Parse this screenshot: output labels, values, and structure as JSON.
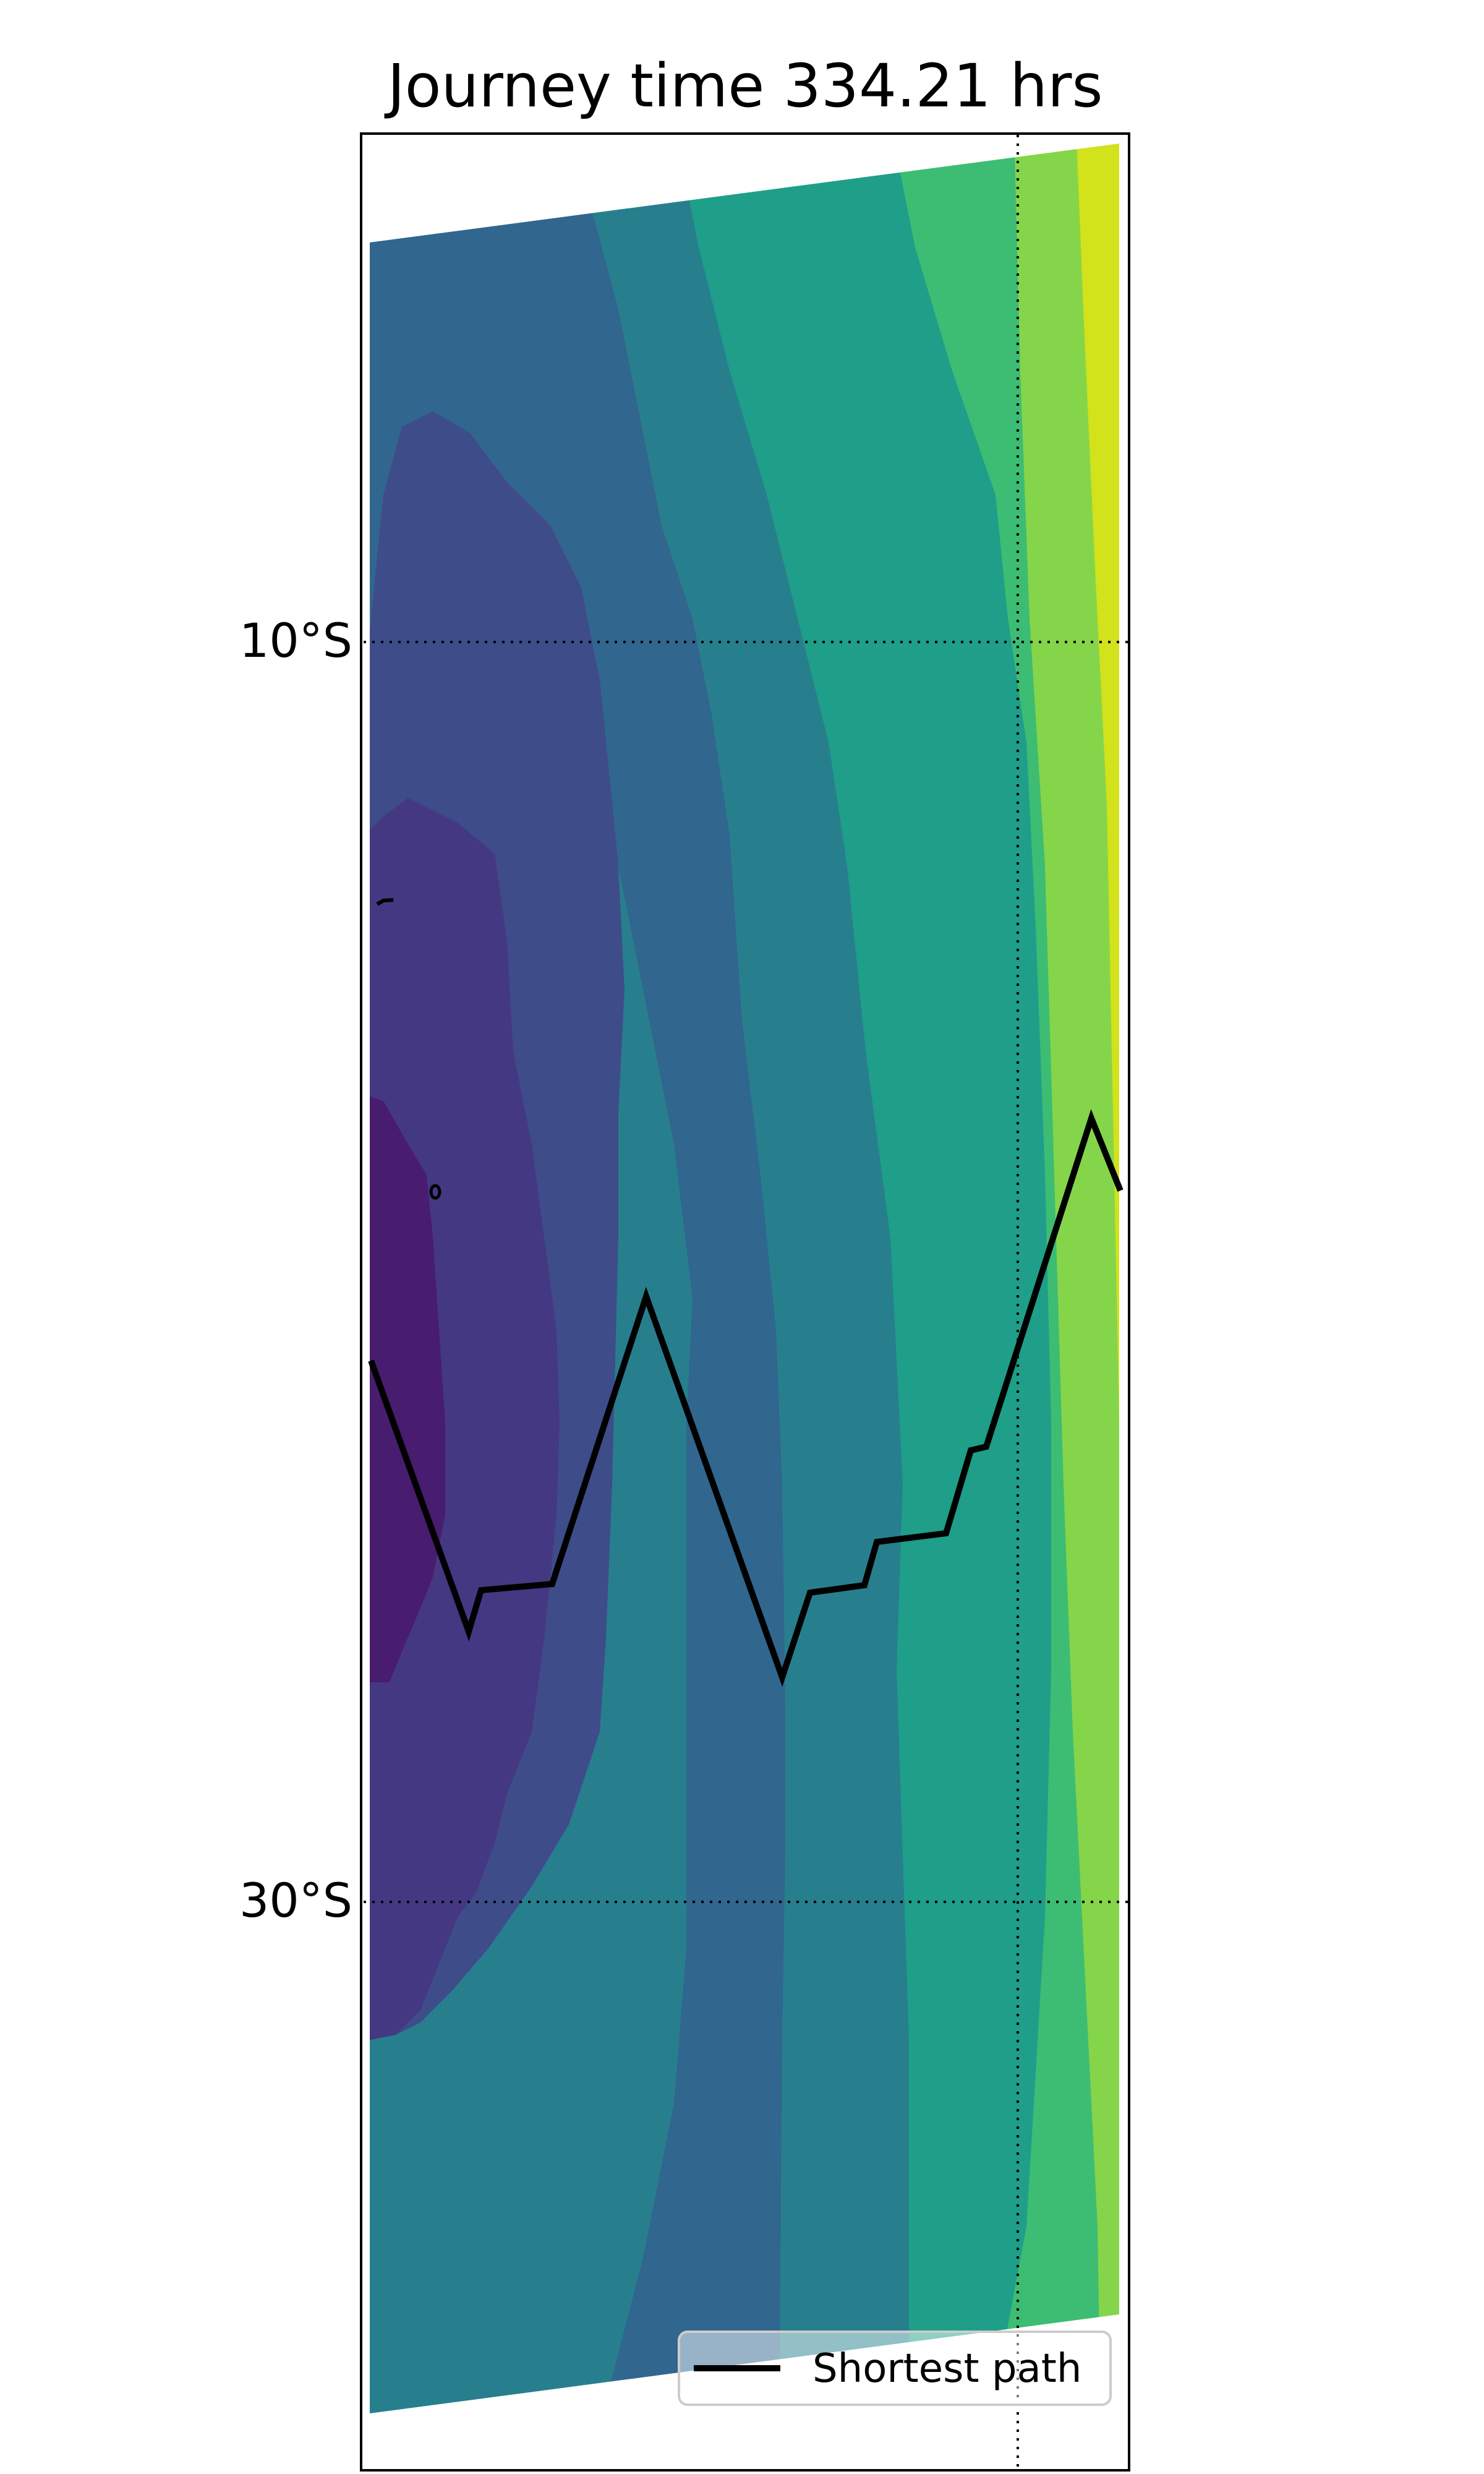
{
  "title": "Journey time 334.21 hrs",
  "lat_labels": [
    "10°S",
    "30°S"
  ],
  "legend": {
    "label": "Shortest path",
    "line_color": "#000000",
    "placement": "lower-right"
  },
  "graticule": {
    "style": "dotted",
    "color": "#000000",
    "latitudes_shown": [
      "10°S",
      "30°S"
    ],
    "meridians_shown": 1
  },
  "colormap": {
    "name": "viridis",
    "levels": [
      "#481c6e",
      "#453882",
      "#3e4c8a",
      "#31668e",
      "#277f8e",
      "#1f9e89",
      "#3dbc74",
      "#85d54a",
      "#d2e21b"
    ]
  },
  "path": {
    "label": "Shortest path",
    "color": "#000000"
  }
}
